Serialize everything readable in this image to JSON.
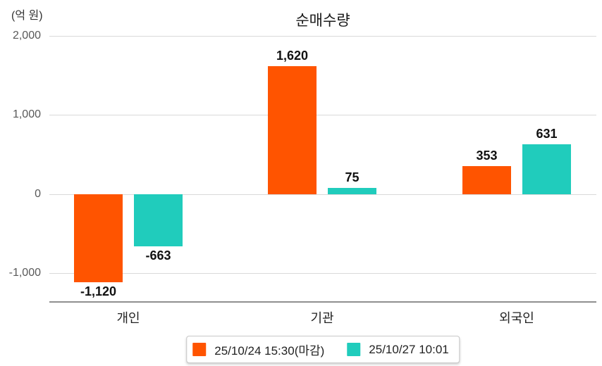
{
  "chart_data": {
    "type": "bar",
    "title": "순매수량",
    "unit_label": "(억 원)",
    "categories": [
      "개인",
      "기관",
      "외국인"
    ],
    "series": [
      {
        "name": "25/10/24 15:30(마감)",
        "color": "#FF5400",
        "values": [
          -1120,
          1620,
          353
        ],
        "value_labels": [
          "-1,120",
          "1,620",
          "353"
        ]
      },
      {
        "name": "25/10/27 10:01",
        "color": "#20CCBC",
        "values": [
          -663,
          75,
          631
        ],
        "value_labels": [
          "-663",
          "75",
          "631"
        ]
      }
    ],
    "y_axis": {
      "ticks": [
        2000,
        1000,
        0,
        -1000
      ],
      "tick_labels": [
        "2,000",
        "1,000",
        "0",
        "-1,000"
      ]
    },
    "ylim": [
      -1400,
      2000
    ],
    "grid": true,
    "legend_position": "bottom"
  },
  "colors": {
    "series1": "#FF5400",
    "series2": "#20CCBC",
    "gridline": "#D9D9D9",
    "axis_line": "#8F8F8F",
    "tick_text": "#595959",
    "category_text": "#222222",
    "value_text": "#111111"
  }
}
